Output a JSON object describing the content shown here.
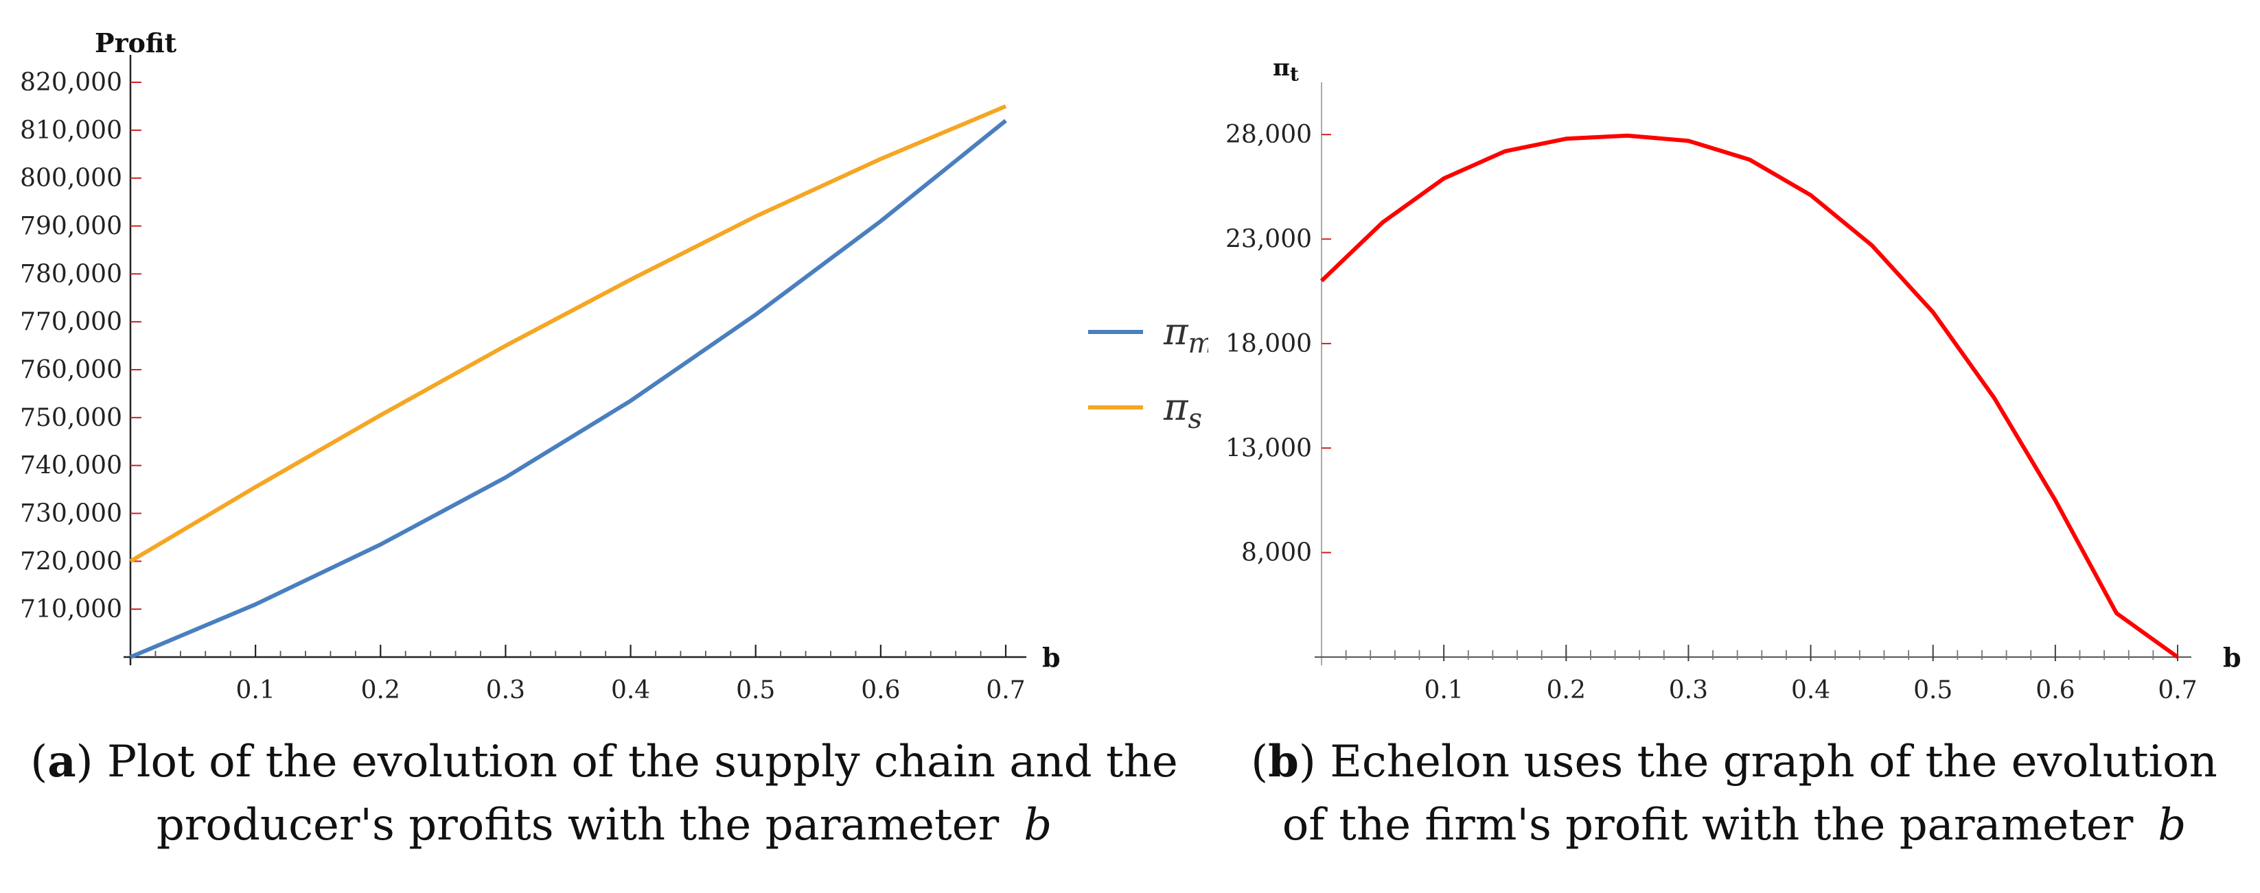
{
  "chart_data": [
    {
      "type": "line",
      "ylabel": "Profit",
      "xlabel": "b",
      "xlim": [
        0,
        0.7
      ],
      "ylim": [
        700000,
        820000
      ],
      "x_ticks": [
        0.1,
        0.2,
        0.3,
        0.4,
        0.5,
        0.6,
        0.7
      ],
      "x_tick_labels": [
        "0.1",
        "0.2",
        "0.3",
        "0.4",
        "0.5",
        "0.6",
        "0.7"
      ],
      "y_ticks": [
        710000,
        720000,
        730000,
        740000,
        750000,
        760000,
        770000,
        780000,
        790000,
        800000,
        810000,
        820000
      ],
      "y_tick_labels": [
        "710,000",
        "720,000",
        "730,000",
        "740,000",
        "750,000",
        "760,000",
        "770,000",
        "780,000",
        "790,000",
        "800,000",
        "810,000",
        "820,000"
      ],
      "legend_position": "right",
      "x": [
        0,
        0.1,
        0.2,
        0.3,
        0.4,
        0.5,
        0.6,
        0.7
      ],
      "series": [
        {
          "name": "π_m",
          "label_base": "π",
          "label_sub": "m",
          "color": "#4a7fbf",
          "values": [
            700000,
            711000,
            723500,
            737500,
            753500,
            771500,
            791000,
            812000
          ]
        },
        {
          "name": "π_s",
          "label_base": "π",
          "label_sub": "s",
          "color": "#f5a623",
          "values": [
            720000,
            735500,
            750500,
            765000,
            778800,
            792000,
            804000,
            815000
          ]
        }
      ],
      "grid": false
    },
    {
      "type": "line",
      "ylabel": "π_t",
      "ylabel_base": "π",
      "ylabel_sub": "t",
      "xlabel": "b",
      "xlim": [
        0,
        0.7
      ],
      "ylim": [
        3000,
        30500
      ],
      "x_ticks": [
        0.1,
        0.2,
        0.3,
        0.4,
        0.5,
        0.6,
        0.7
      ],
      "x_tick_labels": [
        "0.1",
        "0.2",
        "0.3",
        "0.4",
        "0.5",
        "0.6",
        "0.7"
      ],
      "y_ticks": [
        8000,
        13000,
        18000,
        23000,
        28000
      ],
      "y_tick_labels": [
        "8,000",
        "13,000",
        "18,000",
        "23,000",
        "28,000"
      ],
      "x": [
        0,
        0.05,
        0.1,
        0.15,
        0.2,
        0.25,
        0.3,
        0.35,
        0.4,
        0.45,
        0.5,
        0.55,
        0.6,
        0.65,
        0.7
      ],
      "series": [
        {
          "name": "π_t",
          "color": "#ff0000",
          "values": [
            21000,
            23800,
            25900,
            27200,
            27800,
            27950,
            27700,
            26800,
            25100,
            22700,
            19500,
            15400,
            10500,
            5100,
            3000
          ]
        }
      ],
      "grid": false
    }
  ],
  "captions": {
    "a": {
      "tag": "a",
      "line1": "Plot of the evolution of the supply chain and the",
      "line2": "producer's profits with the parameter",
      "variable": "b"
    },
    "b": {
      "tag": "b",
      "line1": "Echelon uses the graph of the evolution",
      "line2": "of the firm's profit with the parameter",
      "variable": "b"
    }
  }
}
